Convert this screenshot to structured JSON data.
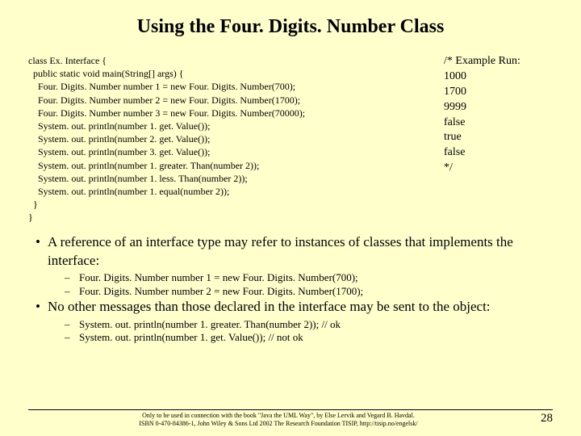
{
  "title": "Using the Four. Digits. Number Class",
  "code": [
    "class Ex. Interface {",
    "  public static void main(String[] args) {",
    "    Four. Digits. Number number 1 = new Four. Digits. Number(700);",
    "    Four. Digits. Number number 2 = new Four. Digits. Number(1700);",
    "    Four. Digits. Number number 3 = new Four. Digits. Number(70000);",
    "    System. out. println(number 1. get. Value());",
    "    System. out. println(number 2. get. Value());",
    "    System. out. println(number 3. get. Value());",
    "    System. out. println(number 1. greater. Than(number 2));",
    "    System. out. println(number 1. less. Than(number 2));",
    "    System. out. println(number 1. equal(number 2));",
    "  }",
    "}"
  ],
  "run": [
    "/* Example Run:",
    "1000",
    "1700",
    "9999",
    "false",
    "true",
    "false",
    "*/"
  ],
  "bullets": [
    {
      "text": "A reference of an interface type may refer to instances of classes that implements the interface:",
      "subs": [
        "Four. Digits. Number number 1 = new Four. Digits. Number(700);",
        "Four. Digits. Number number 2 = new Four. Digits. Number(1700);"
      ]
    },
    {
      "text": "No other messages than those declared in the interface may be sent to the object:",
      "subs": [
        "System. out. println(number 1. greater. Than(number 2));  // ok",
        "System. out. println(number 1. get. Value());  // not ok"
      ]
    }
  ],
  "footer": {
    "line1": "Only to be used in connection with the book \"Java the UML Way\", by Else Lervik and Vegard B. Havdal.",
    "line2": "ISBN 0-470-84386-1, John Wiley & Sons Ltd 2002        The Research Foundation TISIP, http://tisip.no/engelsk/"
  },
  "page": "28",
  "colors": {
    "background": "#ffffcc",
    "text": "#000000"
  }
}
